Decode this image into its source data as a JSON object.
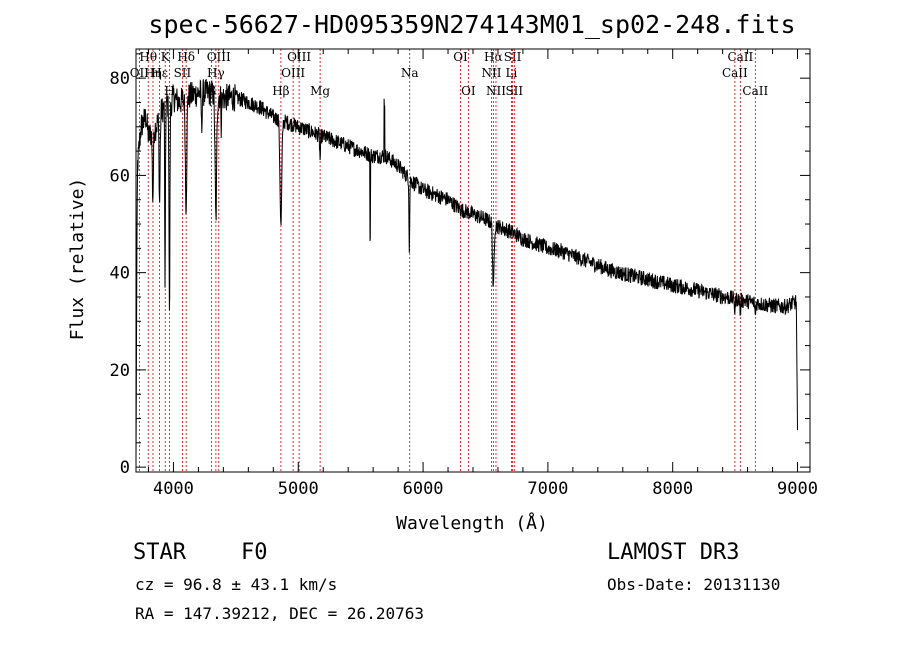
{
  "chart_data": {
    "type": "line",
    "title": "spec-56627-HD095359N274143M01_sp02-248.fits",
    "xlabel": "Wavelength (Å)",
    "ylabel": "Flux (relative)",
    "xlim": [
      3700,
      9100
    ],
    "ylim": [
      -1,
      86
    ],
    "xticks": [
      4000,
      5000,
      6000,
      7000,
      8000,
      9000
    ],
    "yticks": [
      0,
      20,
      40,
      60,
      80
    ],
    "series": [
      {
        "name": "flux",
        "anchors": [
          [
            3700,
            1
          ],
          [
            3705,
            30
          ],
          [
            3712,
            62
          ],
          [
            3740,
            70
          ],
          [
            3780,
            72
          ],
          [
            3800,
            68
          ],
          [
            3860,
            70
          ],
          [
            3900,
            73
          ],
          [
            3940,
            75
          ],
          [
            3970,
            74
          ],
          [
            4000,
            76
          ],
          [
            4050,
            75
          ],
          [
            4100,
            76
          ],
          [
            4200,
            77
          ],
          [
            4300,
            77
          ],
          [
            4400,
            76
          ],
          [
            4500,
            76
          ],
          [
            4600,
            75
          ],
          [
            4700,
            74
          ],
          [
            4800,
            72
          ],
          [
            4900,
            71
          ],
          [
            5000,
            70
          ],
          [
            5100,
            69
          ],
          [
            5200,
            68
          ],
          [
            5300,
            67
          ],
          [
            5400,
            66
          ],
          [
            5500,
            65
          ],
          [
            5600,
            64
          ],
          [
            5700,
            64
          ],
          [
            5800,
            62
          ],
          [
            5900,
            59
          ],
          [
            6000,
            57
          ],
          [
            6100,
            56
          ],
          [
            6200,
            55
          ],
          [
            6300,
            53
          ],
          [
            6400,
            52
          ],
          [
            6500,
            51
          ],
          [
            6600,
            49.5
          ],
          [
            6700,
            48.5
          ],
          [
            6800,
            47
          ],
          [
            6900,
            46
          ],
          [
            7000,
            45
          ],
          [
            7100,
            44.5
          ],
          [
            7200,
            43.5
          ],
          [
            7300,
            42.5
          ],
          [
            7400,
            41.5
          ],
          [
            7500,
            40.5
          ],
          [
            7600,
            39.8
          ],
          [
            7700,
            39.2
          ],
          [
            7800,
            38.6
          ],
          [
            7900,
            38
          ],
          [
            8000,
            37.4
          ],
          [
            8100,
            36.9
          ],
          [
            8200,
            36.3
          ],
          [
            8300,
            35.7
          ],
          [
            8400,
            35.1
          ],
          [
            8500,
            34.6
          ],
          [
            8600,
            34.1
          ],
          [
            8700,
            33.6
          ],
          [
            8800,
            33.2
          ],
          [
            8900,
            33
          ],
          [
            8990,
            34
          ],
          [
            9000,
            7
          ]
        ],
        "absorption": [
          [
            3835,
            14,
            6
          ],
          [
            3889,
            18,
            6
          ],
          [
            3933,
            40,
            4
          ],
          [
            3968,
            44,
            5
          ],
          [
            4101,
            22,
            8
          ],
          [
            4226,
            8,
            4
          ],
          [
            4340,
            26,
            9
          ],
          [
            4383,
            6,
            3
          ],
          [
            4861,
            22,
            10
          ],
          [
            5175,
            5,
            5
          ],
          [
            5890,
            14,
            4
          ],
          [
            6563,
            14,
            8
          ],
          [
            8498,
            3,
            4
          ],
          [
            8542,
            3,
            4
          ],
          [
            8662,
            3,
            4
          ]
        ],
        "spikes": [
          [
            5576,
            -18
          ],
          [
            5690,
            11
          ]
        ],
        "noise_amplitude": 1.6
      }
    ],
    "spectral_lines": [
      {
        "name": "Hθ",
        "wavelength": 3798,
        "row": 1
      },
      {
        "name": "OII",
        "wavelength": 3727,
        "row": 2
      },
      {
        "name": "Hη",
        "wavelength": 3836,
        "row": 2
      },
      {
        "name": "Hε",
        "wavelength": 3889,
        "row": 2
      },
      {
        "name": "K",
        "wavelength": 3934,
        "row": 1
      },
      {
        "name": "H",
        "wavelength": 3969,
        "row": 3
      },
      {
        "name": "Hδ",
        "wavelength": 4102,
        "row": 1
      },
      {
        "name": "SII",
        "wavelength": 4072,
        "row": 2
      },
      {
        "name": "OIII",
        "wavelength": 4363,
        "row": 1
      },
      {
        "name": "Hγ",
        "wavelength": 4340,
        "row": 2
      },
      {
        "name": "G",
        "wavelength": 4305,
        "row": 3
      },
      {
        "name": "Hβ",
        "wavelength": 4861,
        "row": 3
      },
      {
        "name": "OIII",
        "wavelength": 5007,
        "row": 1
      },
      {
        "name": "OIII",
        "wavelength": 4959,
        "row": 2
      },
      {
        "name": "Mg",
        "wavelength": 5175,
        "row": 3
      },
      {
        "name": "Na",
        "wavelength": 5893,
        "row": 2
      },
      {
        "name": "OI",
        "wavelength": 6300,
        "row": 1
      },
      {
        "name": "OI",
        "wavelength": 6363,
        "row": 3
      },
      {
        "name": "Hα",
        "wavelength": 6563,
        "row": 1
      },
      {
        "name": "NII",
        "wavelength": 6548,
        "row": 2
      },
      {
        "name": "NII",
        "wavelength": 6584,
        "row": 3
      },
      {
        "name": "SII",
        "wavelength": 6717,
        "row": 1
      },
      {
        "name": "Li",
        "wavelength": 6708,
        "row": 2
      },
      {
        "name": "SII",
        "wavelength": 6731,
        "row": 3
      },
      {
        "name": "CaII",
        "wavelength": 8542,
        "row": 1
      },
      {
        "name": "CaII",
        "wavelength": 8498,
        "row": 2
      },
      {
        "name": "CaII",
        "wavelength": 8662,
        "row": 3
      }
    ]
  },
  "info": {
    "class_label": "STAR",
    "subclass_label": "F0",
    "redshift": "cz = 96.8 ± 43.1 km/s",
    "coords": "RA = 147.39212, DEC =  26.20763",
    "survey": "LAMOST DR3",
    "obs_date": "Obs-Date: 20131130"
  },
  "colors": {
    "spectrum": "#000000",
    "line_markers": "#cc0000",
    "axes": "#000000"
  }
}
